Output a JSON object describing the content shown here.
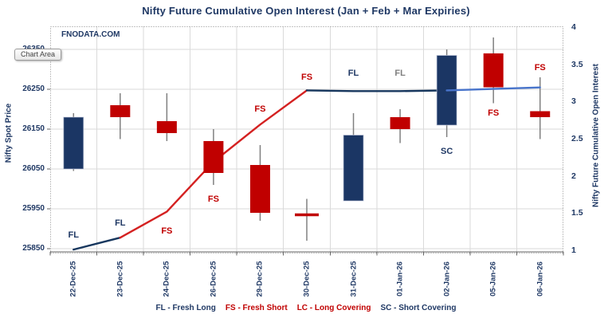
{
  "title": "Nifty Future Cumulative Open Interest (Jan  + Feb + Mar Expiries)",
  "watermark": "FNODATA.COM",
  "tooltip": {
    "text": "Chart Area"
  },
  "colors": {
    "navy": "#1B3664",
    "red": "#C00000",
    "line_navy": "#17375E",
    "line_red": "#D42121",
    "line_lightblue": "#4874CB",
    "wick": "#808080",
    "grid": "#DADADA",
    "axis_text": "#1F3864",
    "label_gray": "#7F7F7F",
    "axis_line": "#666666"
  },
  "legend": [
    {
      "label": "FL - Fresh Long",
      "color": "#1F3864"
    },
    {
      "label": "FS - Fresh Short",
      "color": "#C00000"
    },
    {
      "label": "LC - Long Covering",
      "color": "#C00000"
    },
    {
      "label": "SC - Short Covering",
      "color": "#1F3864"
    }
  ],
  "chart_data": {
    "type": "candlestick",
    "title": "Nifty Future Cumulative Open Interest (Jan  + Feb + Mar Expiries)",
    "categories": [
      "22-Dec-25",
      "23-Dec-25",
      "24-Dec-25",
      "26-Dec-25",
      "29-Dec-25",
      "30-Dec-25",
      "31-Dec-25",
      "01-Jan-26",
      "02-Jan-26",
      "05-Jan-26",
      "06-Jan-26"
    ],
    "left_axis": {
      "title": "Nifty Spot Price",
      "min": 25850,
      "max": 26350,
      "ticks": [
        26350,
        26250,
        26150,
        26050,
        25950,
        25850
      ]
    },
    "right_axis": {
      "title": "Nifty Future Cumulative Open Interest",
      "min": 1,
      "max": 4,
      "ticks": [
        4,
        3.5,
        3,
        2.5,
        2,
        1.5,
        1
      ]
    },
    "grid": true,
    "legend_position": "bottom",
    "series": [
      {
        "name": "Nifty Spot Price",
        "type": "candlestick",
        "axis": "left",
        "ohlc": [
          [
            26050,
            26190,
            26045,
            26180
          ],
          [
            26210,
            26240,
            26125,
            26180
          ],
          [
            26170,
            26240,
            26120,
            26140
          ],
          [
            26120,
            26150,
            26010,
            26040
          ],
          [
            26060,
            26110,
            25920,
            25940
          ],
          [
            25935,
            25975,
            25870,
            25935
          ],
          [
            25970,
            26190,
            25970,
            26135
          ],
          [
            26180,
            26200,
            26115,
            26150
          ],
          [
            26160,
            26350,
            26130,
            26335
          ],
          [
            26340,
            26380,
            26215,
            26255
          ],
          [
            26195,
            26280,
            26125,
            26180
          ]
        ]
      },
      {
        "name": "Nifty Future Cumulative Open Interest",
        "type": "line",
        "axis": "right",
        "values": [
          1.02,
          1.18,
          1.53,
          2.2,
          2.7,
          3.16,
          3.15,
          3.15,
          3.16,
          3.18,
          3.2
        ],
        "segment_colors": [
          "navy",
          "red",
          "red",
          "red",
          "red",
          "navy",
          "navy",
          "navy",
          "lightblue",
          "lightblue"
        ]
      }
    ],
    "annotations": [
      {
        "index": 0,
        "label": "FL",
        "price": 25885,
        "color": "navy"
      },
      {
        "index": 1,
        "label": "FL",
        "price": 25915,
        "color": "navy"
      },
      {
        "index": 2,
        "label": "FS",
        "price": 25895,
        "color": "red"
      },
      {
        "index": 3,
        "label": "FS",
        "price": 25975,
        "color": "red"
      },
      {
        "index": 4,
        "label": "FS",
        "price": 26200,
        "color": "red"
      },
      {
        "index": 5,
        "label": "FS",
        "price": 26280,
        "color": "red"
      },
      {
        "index": 6,
        "label": "FL",
        "price": 26290,
        "color": "navy"
      },
      {
        "index": 7,
        "label": "FL",
        "price": 26290,
        "color": "gray"
      },
      {
        "index": 8,
        "label": "SC",
        "price": 26095,
        "color": "navy"
      },
      {
        "index": 9,
        "label": "FS",
        "price": 26190,
        "color": "red"
      },
      {
        "index": 10,
        "label": "FS",
        "price": 26305,
        "color": "red"
      }
    ]
  }
}
